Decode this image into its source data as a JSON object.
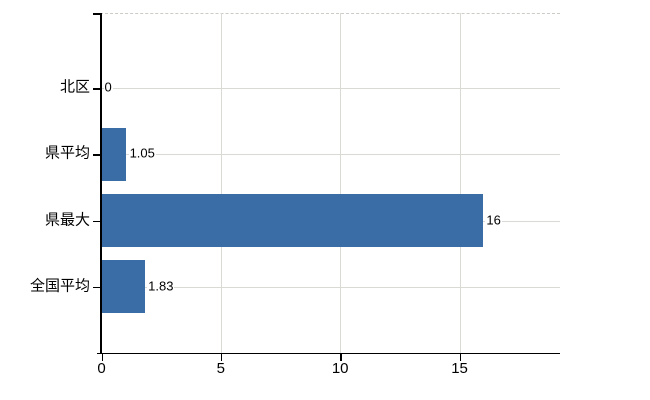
{
  "chart_data": {
    "type": "bar",
    "orientation": "horizontal",
    "title": "",
    "xlabel": "",
    "ylabel": "",
    "categories": [
      "北区",
      "県平均",
      "県最大",
      "全国平均"
    ],
    "values": [
      0,
      1.05,
      16,
      1.83
    ],
    "value_labels": [
      "0",
      "1.05",
      "16",
      "1.83"
    ],
    "xticks": [
      0,
      5,
      10,
      15
    ],
    "xlim": [
      0,
      19.2
    ],
    "grid": true,
    "legend": false,
    "colors": {
      "bar": "#3a6ca6",
      "gridline": "#d8dad3",
      "axis": "#000000",
      "text": "#000000",
      "background": "#ffffff",
      "plot_top_border": "#c9cdc6"
    }
  }
}
